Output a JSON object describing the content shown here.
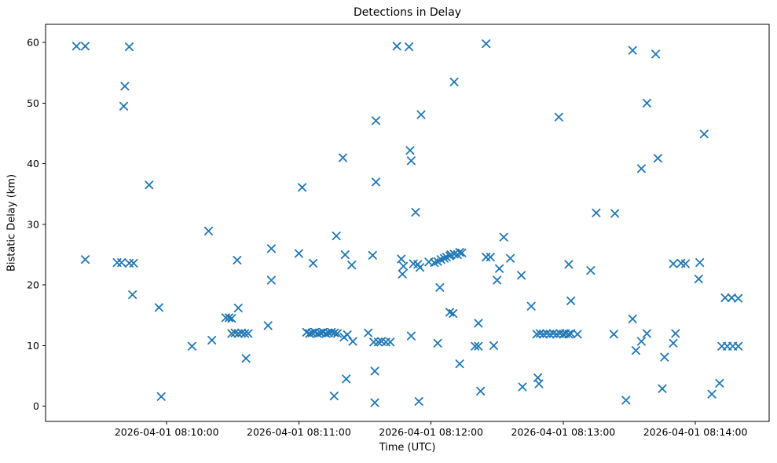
{
  "figure": {
    "title": "Detections in Delay",
    "xlabel": "Time (UTC)",
    "ylabel": "Bistatic Delay (km)"
  },
  "chart_data": {
    "type": "scatter",
    "title": "Detections in Delay",
    "xlabel": "Time (UTC)",
    "ylabel": "Bistatic Delay (km)",
    "marker": "x",
    "marker_color": "#1f77b4",
    "axis_color": "#000000",
    "grid": false,
    "legend": null,
    "x_unit": "seconds after 2026-04-01 08:10:00 UTC",
    "x_domain": [
      -55,
      273.5
    ],
    "y_domain": [
      -2.5,
      63
    ],
    "x_ticks": [
      {
        "value": 0,
        "label": "2026-04-01 08:10:00"
      },
      {
        "value": 60,
        "label": "2026-04-01 08:11:00"
      },
      {
        "value": 120,
        "label": "2026-04-01 08:12:00"
      },
      {
        "value": 180,
        "label": "2026-04-01 08:13:00"
      },
      {
        "value": 240,
        "label": "2026-04-01 08:14:00"
      }
    ],
    "y_ticks": [
      {
        "value": 0,
        "label": "0"
      },
      {
        "value": 10,
        "label": "10"
      },
      {
        "value": 20,
        "label": "20"
      },
      {
        "value": 30,
        "label": "30"
      },
      {
        "value": 40,
        "label": "40"
      },
      {
        "value": 50,
        "label": "50"
      },
      {
        "value": 60,
        "label": "60"
      }
    ],
    "points": [
      [
        -41,
        59.4
      ],
      [
        -37,
        59.4
      ],
      [
        -17,
        59.3
      ],
      [
        -19,
        52.8
      ],
      [
        -19.5,
        49.5
      ],
      [
        -37,
        24.2
      ],
      [
        -22.5,
        23.7
      ],
      [
        -20.5,
        23.7
      ],
      [
        -17,
        23.6
      ],
      [
        -15,
        23.6
      ],
      [
        -15.5,
        18.4
      ],
      [
        -8,
        36.5
      ],
      [
        -3.5,
        16.3
      ],
      [
        -2.5,
        1.6
      ],
      [
        11.5,
        9.9
      ],
      [
        19,
        28.9
      ],
      [
        20.5,
        10.9
      ],
      [
        26.8,
        14.6
      ],
      [
        28.3,
        14.6
      ],
      [
        29.5,
        14.5
      ],
      [
        29.5,
        12.0
      ],
      [
        31,
        12.1
      ],
      [
        32.5,
        12.0
      ],
      [
        34,
        12.1
      ],
      [
        35.5,
        12.0
      ],
      [
        37,
        12.0
      ],
      [
        32,
        24.1
      ],
      [
        32.5,
        16.2
      ],
      [
        36,
        7.9
      ],
      [
        46,
        13.3
      ],
      [
        47.5,
        26.0
      ],
      [
        47.5,
        20.8
      ],
      [
        60,
        25.2
      ],
      [
        61.5,
        36.1
      ],
      [
        66.5,
        23.6
      ],
      [
        63.5,
        12.2
      ],
      [
        64.8,
        12.0
      ],
      [
        66,
        12.1
      ],
      [
        67.3,
        12.2
      ],
      [
        68.5,
        12.0
      ],
      [
        69.8,
        12.1
      ],
      [
        71,
        12.2
      ],
      [
        72.3,
        12.0
      ],
      [
        73.5,
        12.1
      ],
      [
        74.8,
        12.2
      ],
      [
        76.2,
        12.1
      ],
      [
        77.5,
        12.0
      ],
      [
        76,
        1.7
      ],
      [
        77,
        28.1
      ],
      [
        80,
        41.0
      ],
      [
        80.5,
        11.4
      ],
      [
        82,
        11.8
      ],
      [
        81.5,
        4.5
      ],
      [
        81,
        25.0
      ],
      [
        84,
        23.3
      ],
      [
        84.5,
        10.7
      ],
      [
        91.5,
        12.1
      ],
      [
        93.5,
        24.9
      ],
      [
        94,
        10.6
      ],
      [
        96,
        10.6
      ],
      [
        97.5,
        10.7
      ],
      [
        99.5,
        10.6
      ],
      [
        101.5,
        10.6
      ],
      [
        94.5,
        0.6
      ],
      [
        94.5,
        5.8
      ],
      [
        95,
        47.1
      ],
      [
        95,
        37.0
      ],
      [
        104.5,
        59.4
      ],
      [
        106.5,
        24.3
      ],
      [
        107.5,
        23.1
      ],
      [
        107,
        21.8
      ],
      [
        110,
        59.3
      ],
      [
        110.5,
        42.2
      ],
      [
        111,
        40.5
      ],
      [
        111,
        11.6
      ],
      [
        112,
        23.5
      ],
      [
        113,
        32.0
      ],
      [
        114,
        23.4
      ],
      [
        114.5,
        0.8
      ],
      [
        115,
        22.9
      ],
      [
        115.5,
        48.1
      ],
      [
        119,
        23.8
      ],
      [
        121.5,
        23.7
      ],
      [
        123,
        23.9
      ],
      [
        123,
        10.4
      ],
      [
        124,
        19.6
      ],
      [
        124.5,
        24.2
      ],
      [
        126,
        24.4
      ],
      [
        127,
        24.6
      ],
      [
        128.5,
        24.8
      ],
      [
        129,
        25.0
      ],
      [
        130.5,
        25.1
      ],
      [
        132,
        25.0
      ],
      [
        133,
        25.4
      ],
      [
        134,
        25.3
      ],
      [
        128.5,
        15.5
      ],
      [
        130,
        15.3
      ],
      [
        130.5,
        53.5
      ],
      [
        133,
        7.0
      ],
      [
        140,
        9.9
      ],
      [
        141.5,
        9.9
      ],
      [
        141.5,
        13.7
      ],
      [
        142.5,
        2.5
      ],
      [
        145,
        59.8
      ],
      [
        145,
        24.6
      ],
      [
        147,
        24.6
      ],
      [
        148.5,
        10.0
      ],
      [
        150,
        20.8
      ],
      [
        151,
        22.7
      ],
      [
        153,
        27.9
      ],
      [
        156,
        24.4
      ],
      [
        161,
        21.6
      ],
      [
        161.5,
        3.2
      ],
      [
        165.5,
        16.5
      ],
      [
        168.5,
        4.7
      ],
      [
        169,
        3.7
      ],
      [
        168,
        11.9
      ],
      [
        169.5,
        12.0
      ],
      [
        171,
        11.9
      ],
      [
        172.5,
        12.0
      ],
      [
        174,
        11.9
      ],
      [
        175.5,
        12.0
      ],
      [
        177,
        11.9
      ],
      [
        178.5,
        12.0
      ],
      [
        180,
        11.9
      ],
      [
        181,
        12.0
      ],
      [
        182.5,
        11.9
      ],
      [
        183.5,
        12.0
      ],
      [
        186.5,
        11.9
      ],
      [
        178,
        47.7
      ],
      [
        182.5,
        23.4
      ],
      [
        183.5,
        17.4
      ],
      [
        192.5,
        22.4
      ],
      [
        195,
        31.9
      ],
      [
        203,
        11.9
      ],
      [
        203.5,
        31.8
      ],
      [
        208.5,
        1.0
      ],
      [
        211.5,
        14.4
      ],
      [
        211.5,
        58.7
      ],
      [
        213,
        9.2
      ],
      [
        215.5,
        39.2
      ],
      [
        215.5,
        10.7
      ],
      [
        218,
        50.0
      ],
      [
        218,
        12.0
      ],
      [
        222,
        58.1
      ],
      [
        223,
        40.9
      ],
      [
        225,
        2.9
      ],
      [
        226,
        8.1
      ],
      [
        230,
        10.4
      ],
      [
        230,
        23.5
      ],
      [
        231,
        12.0
      ],
      [
        233.5,
        23.6
      ],
      [
        235.5,
        23.5
      ],
      [
        241.5,
        21.0
      ],
      [
        242,
        23.7
      ],
      [
        244,
        44.9
      ],
      [
        247.5,
        2.0
      ],
      [
        251,
        3.8
      ],
      [
        252,
        9.9
      ],
      [
        254.5,
        9.9
      ],
      [
        257,
        9.9
      ],
      [
        259.5,
        9.9
      ],
      [
        253.5,
        17.9
      ],
      [
        256.5,
        17.9
      ],
      [
        259.5,
        17.8
      ]
    ]
  }
}
